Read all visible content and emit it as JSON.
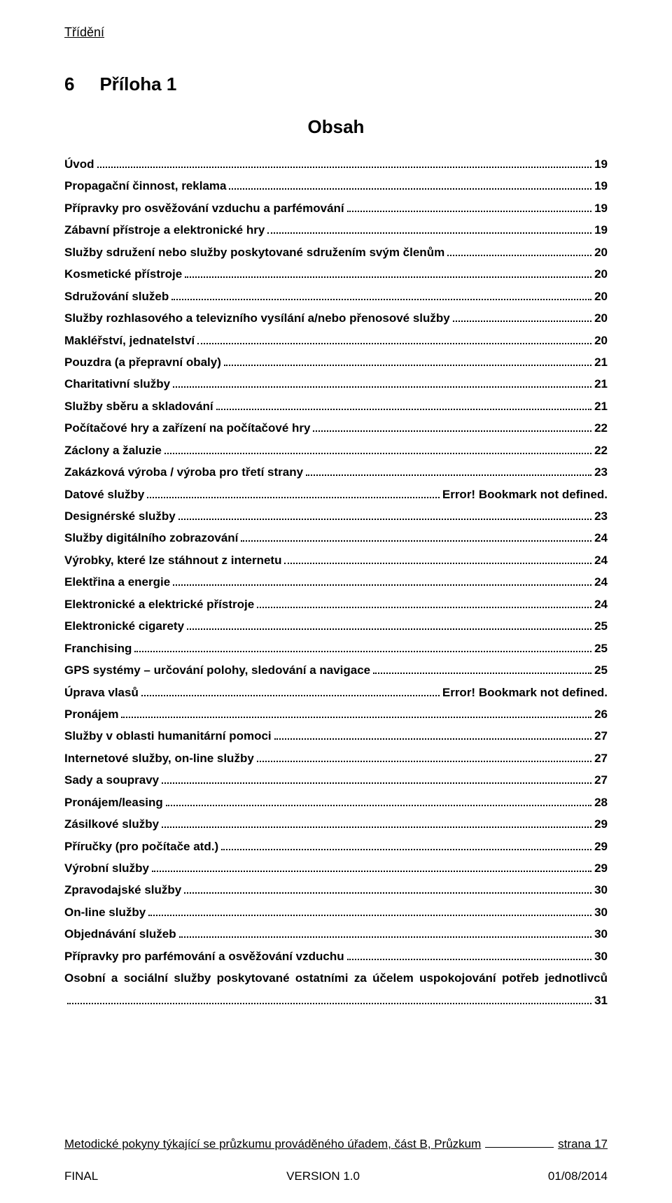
{
  "header": {
    "running": "Třídění"
  },
  "title": {
    "number": "6",
    "text": "Příloha 1"
  },
  "subtitle": "Obsah",
  "toc": [
    {
      "label": "Úvod",
      "page": "19"
    },
    {
      "label": "Propagační činnost, reklama",
      "page": "19"
    },
    {
      "label": "Přípravky pro osvěžování vzduchu a parfémování",
      "page": "19"
    },
    {
      "label": "Zábavní přístroje a elektronické hry",
      "page": "19"
    },
    {
      "label": "Služby sdružení nebo služby poskytované sdružením svým členům",
      "page": "20"
    },
    {
      "label": "Kosmetické přístroje",
      "page": "20"
    },
    {
      "label": "Sdružování služeb",
      "page": "20"
    },
    {
      "label": "Služby rozhlasového a televizního vysílání a/nebo přenosové služby",
      "page": "20"
    },
    {
      "label": "Makléřství, jednatelství",
      "page": "20"
    },
    {
      "label": "Pouzdra (a přepravní obaly)",
      "page": "21"
    },
    {
      "label": "Charitativní služby",
      "page": "21"
    },
    {
      "label": "Služby sběru a skladování",
      "page": "21"
    },
    {
      "label": "Počítačové hry a zařízení na počítačové hry",
      "page": "22"
    },
    {
      "label": "Záclony a žaluzie",
      "page": "22"
    },
    {
      "label": "Zakázková výroba / výroba pro třetí strany",
      "page": "23"
    },
    {
      "label": "Datové služby",
      "page": "Error! Bookmark not defined."
    },
    {
      "label": "Designérské služby",
      "page": "23"
    },
    {
      "label": "Služby digitálního zobrazování",
      "page": "24"
    },
    {
      "label": "Výrobky, které lze stáhnout z internetu",
      "page": "24"
    },
    {
      "label": "Elektřina a energie",
      "page": "24"
    },
    {
      "label": "Elektronické a elektrické přístroje",
      "page": "24"
    },
    {
      "label": "Elektronické cigarety",
      "page": "25"
    },
    {
      "label": "Franchising",
      "page": "25"
    },
    {
      "label": "GPS systémy – určování polohy, sledování a navigace",
      "page": "25"
    },
    {
      "label": "Úprava vlasů",
      "page": "Error! Bookmark not defined."
    },
    {
      "label": "Pronájem",
      "page": "26"
    },
    {
      "label": "Služby v oblasti humanitární pomoci",
      "page": "27"
    },
    {
      "label": "Internetové služby, on-line služby",
      "page": "27"
    },
    {
      "label": "Sady a soupravy",
      "page": "27"
    },
    {
      "label": "Pronájem/leasing",
      "page": "28"
    },
    {
      "label": "Zásilkové služby",
      "page": "29"
    },
    {
      "label": "Příručky (pro počítače atd.)",
      "page": "29"
    },
    {
      "label": "Výrobní služby",
      "page": "29"
    },
    {
      "label": "Zpravodajské služby",
      "page": "30"
    },
    {
      "label": "On-line služby",
      "page": "30"
    },
    {
      "label": "Objednávání služeb",
      "page": "30"
    },
    {
      "label": "Přípravky pro parfémování a osvěžování vzduchu",
      "page": "30"
    },
    {
      "label": "Osobní a sociální služby poskytované ostatními za účelem uspokojování potřeb jednotlivců",
      "page": "31",
      "wrap": true
    }
  ],
  "guideline": {
    "label": "Metodické pokyny týkající se průzkumu prováděného úřadem, část B, Průzkum",
    "page": "strana 17"
  },
  "footer": {
    "left": "FINAL",
    "center": "VERSION 1.0",
    "right": "01/08/2014"
  }
}
